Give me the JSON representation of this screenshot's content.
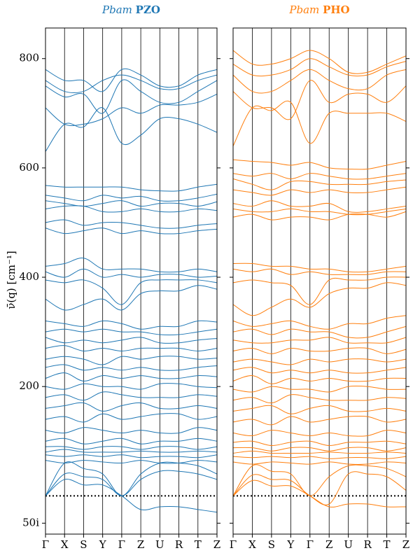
{
  "chart_data": [
    {
      "type": "line",
      "title": [
        "Pbam",
        "PZO"
      ],
      "color": "#1f77b4",
      "ylabel": "ν̄(q) [cm⁻¹]",
      "categories": [
        "Γ",
        "X",
        "S",
        "Y",
        "Γ",
        "Z",
        "U",
        "R",
        "T",
        "Z"
      ],
      "ylim": [
        -70,
        856
      ],
      "yticks": [
        {
          "value": -50,
          "label": "50i"
        },
        200,
        400,
        600,
        800
      ],
      "tick_labels": true,
      "vlines": true,
      "zero_line": 0,
      "series": [
        {
          "values": [
            780,
            760,
            760,
            740,
            780,
            770,
            750,
            750,
            770,
            780
          ]
        },
        {
          "values": [
            760,
            740,
            740,
            760,
            770,
            760,
            745,
            745,
            760,
            770
          ]
        },
        {
          "values": [
            750,
            730,
            735,
            700,
            760,
            740,
            720,
            720,
            740,
            760
          ]
        },
        {
          "values": [
            710,
            680,
            680,
            690,
            710,
            700,
            715,
            715,
            720,
            735
          ]
        },
        {
          "values": [
            630,
            680,
            675,
            710,
            645,
            660,
            690,
            690,
            680,
            665
          ]
        },
        {
          "values": [
            568,
            565,
            565,
            565,
            565,
            560,
            558,
            558,
            565,
            570
          ]
        },
        {
          "values": [
            550,
            545,
            540,
            550,
            545,
            548,
            540,
            540,
            545,
            552
          ]
        },
        {
          "values": [
            540,
            535,
            530,
            535,
            540,
            530,
            535,
            535,
            530,
            538
          ]
        },
        {
          "values": [
            525,
            530,
            530,
            520,
            520,
            525,
            520,
            520,
            525,
            522
          ]
        },
        {
          "values": [
            500,
            505,
            495,
            500,
            500,
            495,
            490,
            490,
            495,
            498
          ]
        },
        {
          "values": [
            490,
            480,
            485,
            490,
            480,
            485,
            480,
            480,
            485,
            488
          ]
        },
        {
          "values": [
            420,
            425,
            435,
            415,
            415,
            415,
            410,
            410,
            415,
            410
          ]
        },
        {
          "values": [
            410,
            400,
            415,
            400,
            405,
            400,
            405,
            405,
            400,
            402
          ]
        },
        {
          "values": [
            395,
            390,
            395,
            380,
            350,
            390,
            395,
            395,
            395,
            390
          ]
        },
        {
          "values": [
            360,
            340,
            350,
            360,
            340,
            370,
            375,
            375,
            385,
            378
          ]
        },
        {
          "values": [
            320,
            315,
            310,
            320,
            315,
            305,
            310,
            310,
            320,
            318
          ]
        },
        {
          "values": [
            300,
            305,
            300,
            305,
            300,
            300,
            295,
            295,
            300,
            305
          ]
        },
        {
          "values": [
            290,
            280,
            285,
            280,
            285,
            290,
            280,
            280,
            285,
            288
          ]
        },
        {
          "values": [
            270,
            275,
            265,
            270,
            265,
            270,
            270,
            270,
            265,
            270
          ]
        },
        {
          "values": [
            250,
            255,
            250,
            240,
            255,
            250,
            255,
            255,
            250,
            252
          ]
        },
        {
          "values": [
            235,
            240,
            230,
            235,
            230,
            235,
            230,
            230,
            235,
            238
          ]
        },
        {
          "values": [
            215,
            225,
            210,
            220,
            215,
            220,
            215,
            215,
            220,
            218
          ]
        },
        {
          "values": [
            200,
            195,
            205,
            200,
            200,
            195,
            205,
            205,
            200,
            198
          ]
        },
        {
          "values": [
            180,
            185,
            175,
            190,
            185,
            180,
            180,
            180,
            185,
            182
          ]
        },
        {
          "values": [
            160,
            165,
            170,
            155,
            165,
            170,
            160,
            160,
            165,
            160
          ]
        },
        {
          "values": [
            140,
            145,
            135,
            150,
            140,
            145,
            150,
            150,
            140,
            145
          ]
        },
        {
          "values": [
            120,
            115,
            125,
            120,
            115,
            120,
            115,
            115,
            125,
            120
          ]
        },
        {
          "values": [
            100,
            105,
            95,
            100,
            105,
            95,
            100,
            100,
            105,
            100
          ]
        },
        {
          "values": [
            90,
            90,
            85,
            90,
            90,
            85,
            90,
            90,
            85,
            90
          ]
        },
        {
          "values": [
            80,
            85,
            80,
            80,
            80,
            82,
            80,
            80,
            82,
            80
          ]
        },
        {
          "values": [
            75,
            72,
            75,
            72,
            75,
            70,
            72,
            72,
            70,
            75
          ]
        },
        {
          "values": [
            65,
            60,
            65,
            62,
            60,
            65,
            60,
            60,
            65,
            62
          ]
        },
        {
          "values": [
            0,
            60,
            50,
            40,
            0,
            40,
            60,
            60,
            55,
            40
          ]
        },
        {
          "values": [
            0,
            40,
            35,
            30,
            0,
            30,
            45,
            45,
            40,
            30
          ]
        },
        {
          "values": [
            0,
            30,
            20,
            20,
            0,
            -25,
            -20,
            -20,
            -25,
            -30
          ]
        }
      ]
    },
    {
      "type": "line",
      "title": [
        "Pbam",
        "PHO"
      ],
      "color": "#ff7f0e",
      "categories": [
        "Γ",
        "X",
        "S",
        "Y",
        "Γ",
        "Z",
        "U",
        "R",
        "T",
        "Z"
      ],
      "ylim": [
        -70,
        856
      ],
      "yticks": [
        -50,
        200,
        400,
        600,
        800
      ],
      "tick_labels": false,
      "vlines": true,
      "zero_line": 0,
      "series": [
        {
          "values": [
            815,
            790,
            790,
            800,
            815,
            800,
            775,
            775,
            790,
            805
          ]
        },
        {
          "values": [
            790,
            770,
            770,
            780,
            800,
            785,
            770,
            770,
            785,
            795
          ]
        },
        {
          "values": [
            770,
            740,
            740,
            760,
            780,
            760,
            745,
            745,
            770,
            780
          ]
        },
        {
          "values": [
            740,
            710,
            710,
            690,
            760,
            720,
            735,
            735,
            720,
            750
          ]
        },
        {
          "values": [
            640,
            710,
            705,
            720,
            645,
            700,
            700,
            700,
            700,
            685
          ]
        },
        {
          "values": [
            615,
            612,
            610,
            605,
            610,
            600,
            598,
            598,
            605,
            612
          ]
        },
        {
          "values": [
            590,
            585,
            590,
            580,
            590,
            585,
            580,
            580,
            585,
            590
          ]
        },
        {
          "values": [
            580,
            570,
            560,
            575,
            575,
            570,
            570,
            570,
            575,
            578
          ]
        },
        {
          "values": [
            560,
            555,
            550,
            560,
            555,
            560,
            555,
            555,
            560,
            565
          ]
        },
        {
          "values": [
            535,
            530,
            540,
            530,
            530,
            535,
            520,
            520,
            525,
            530
          ]
        },
        {
          "values": [
            525,
            520,
            520,
            525,
            520,
            520,
            515,
            515,
            520,
            525
          ]
        },
        {
          "values": [
            510,
            515,
            505,
            510,
            510,
            505,
            515,
            515,
            510,
            520
          ]
        },
        {
          "values": [
            425,
            425,
            420,
            420,
            415,
            415,
            410,
            410,
            415,
            420
          ]
        },
        {
          "values": [
            415,
            410,
            415,
            405,
            410,
            405,
            405,
            405,
            410,
            410
          ]
        },
        {
          "values": [
            390,
            395,
            390,
            385,
            350,
            395,
            395,
            395,
            400,
            400
          ]
        },
        {
          "values": [
            350,
            330,
            345,
            360,
            345,
            370,
            380,
            380,
            390,
            385
          ]
        },
        {
          "values": [
            320,
            310,
            315,
            320,
            310,
            305,
            315,
            315,
            325,
            330
          ]
        },
        {
          "values": [
            300,
            305,
            295,
            305,
            300,
            300,
            290,
            290,
            300,
            310
          ]
        },
        {
          "values": [
            285,
            280,
            280,
            285,
            285,
            290,
            280,
            280,
            280,
            290
          ]
        },
        {
          "values": [
            265,
            270,
            260,
            270,
            265,
            265,
            270,
            270,
            260,
            268
          ]
        },
        {
          "values": [
            245,
            250,
            245,
            240,
            250,
            245,
            250,
            250,
            245,
            250
          ]
        },
        {
          "values": [
            230,
            235,
            225,
            230,
            225,
            230,
            225,
            225,
            230,
            235
          ]
        },
        {
          "values": [
            210,
            220,
            205,
            215,
            210,
            215,
            210,
            210,
            215,
            215
          ]
        },
        {
          "values": [
            195,
            190,
            200,
            195,
            195,
            190,
            200,
            200,
            195,
            195
          ]
        },
        {
          "values": [
            175,
            180,
            170,
            185,
            180,
            175,
            175,
            175,
            180,
            178
          ]
        },
        {
          "values": [
            155,
            160,
            165,
            150,
            160,
            165,
            155,
            155,
            160,
            155
          ]
        },
        {
          "values": [
            135,
            140,
            130,
            145,
            135,
            140,
            145,
            145,
            135,
            140
          ]
        },
        {
          "values": [
            115,
            110,
            120,
            115,
            110,
            115,
            110,
            110,
            120,
            115
          ]
        },
        {
          "values": [
            98,
            100,
            92,
            98,
            100,
            92,
            98,
            98,
            100,
            95
          ]
        },
        {
          "values": [
            88,
            88,
            82,
            88,
            88,
            82,
            88,
            88,
            82,
            88
          ]
        },
        {
          "values": [
            78,
            82,
            78,
            78,
            78,
            80,
            78,
            78,
            80,
            78
          ]
        },
        {
          "values": [
            72,
            70,
            72,
            70,
            72,
            68,
            70,
            70,
            68,
            72
          ]
        },
        {
          "values": [
            62,
            58,
            62,
            60,
            58,
            62,
            58,
            58,
            62,
            60
          ]
        },
        {
          "values": [
            0,
            55,
            45,
            40,
            0,
            35,
            55,
            55,
            50,
            35
          ]
        },
        {
          "values": [
            0,
            38,
            30,
            28,
            0,
            -15,
            40,
            40,
            35,
            10
          ]
        },
        {
          "values": [
            0,
            28,
            18,
            18,
            0,
            -20,
            -15,
            -15,
            -20,
            -20
          ]
        }
      ]
    }
  ]
}
